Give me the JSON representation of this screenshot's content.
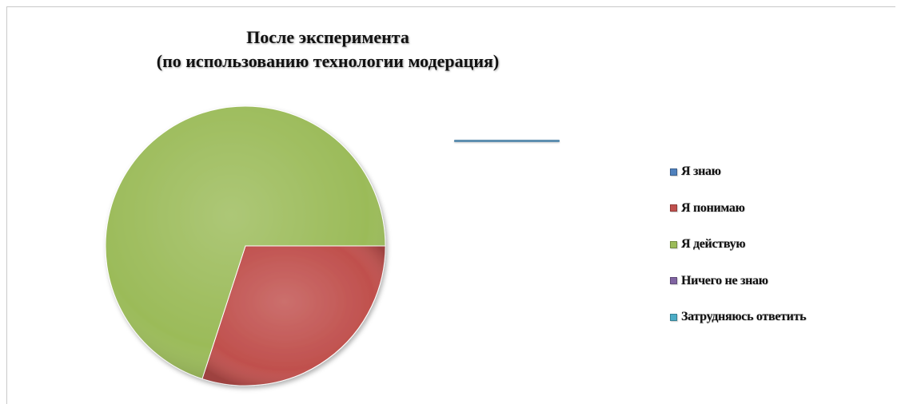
{
  "chart_data": {
    "type": "pie",
    "title": "После эксперимента",
    "subtitle": "(по использованию технологии модерация)",
    "categories": [
      "Я знаю",
      "Я понимаю",
      "Я действую",
      "Ничего не знаю",
      "Затрудняюсь ответить"
    ],
    "values": [
      0,
      30,
      70,
      0,
      0
    ],
    "colors": [
      "#4f81bd",
      "#c0504d",
      "#9bbb59",
      "#8064a2",
      "#4bacc6"
    ],
    "legend_position": "right"
  }
}
